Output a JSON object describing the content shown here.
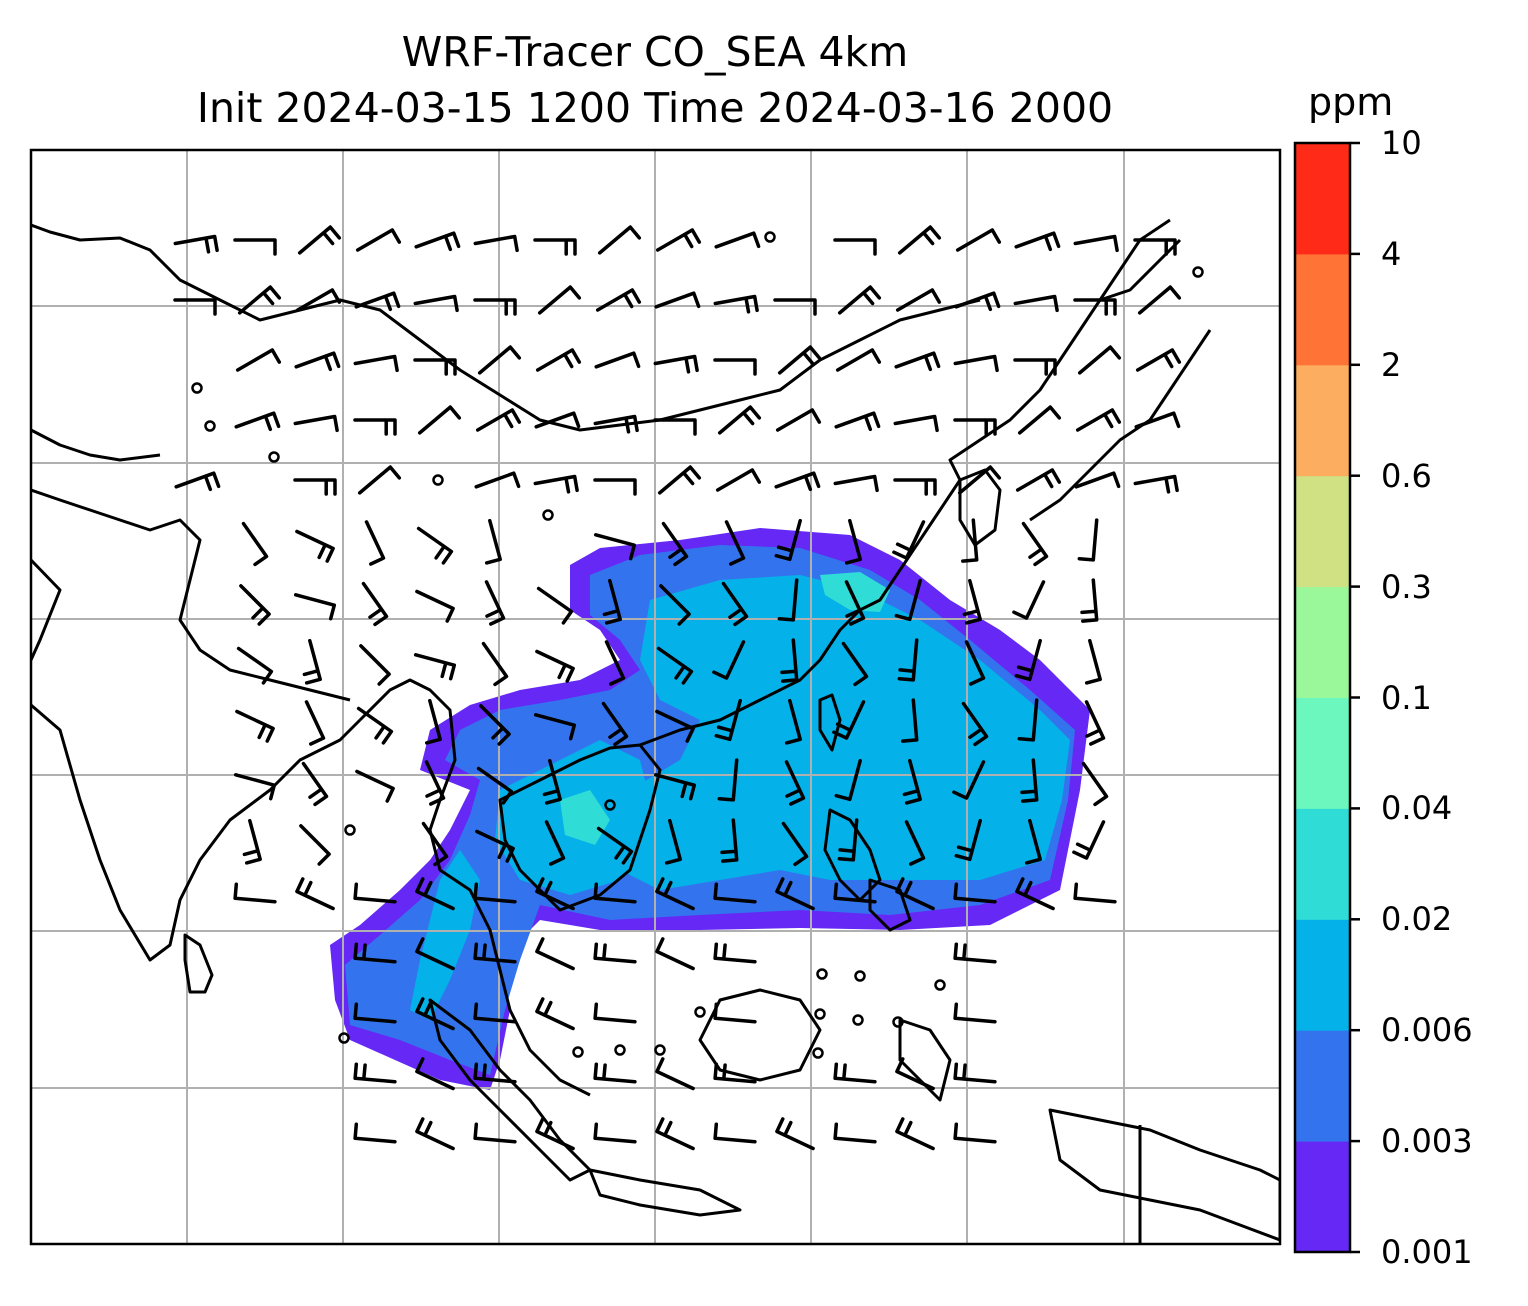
{
  "title": {
    "line1": "WRF-Tracer CO_SEA 4km",
    "line2": "Init 2024-03-15 1200 Time 2024-03-16 2000"
  },
  "colorbar": {
    "unit": "ppm",
    "levels": [
      "0.001",
      "0.003",
      "0.006",
      "0.02",
      "0.04",
      "0.1",
      "0.3",
      "0.6",
      "2",
      "4",
      "10"
    ],
    "colors": [
      "#6528f5",
      "#3374ee",
      "#04b1e8",
      "#30dcd6",
      "#6bf7bd",
      "#9af79a",
      "#cfe182",
      "#fdad5f",
      "#ff7337",
      "#ff2a18"
    ]
  },
  "map": {
    "gridlines": true,
    "coastline_color": "#000000",
    "grid_color": "#b0b0b0"
  }
}
